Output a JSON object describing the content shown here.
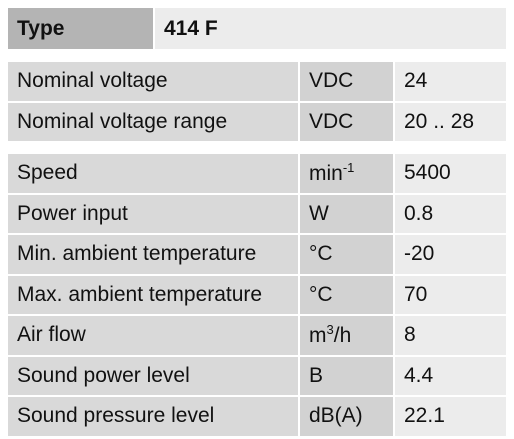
{
  "header": {
    "label": "Type",
    "value": "414 F"
  },
  "groups": [
    [
      {
        "label": "Nominal voltage",
        "unit": [
          "VDC"
        ],
        "value": 24
      },
      {
        "label": "Nominal voltage range",
        "unit": [
          "VDC"
        ],
        "value": "20 .. 28"
      }
    ],
    [
      {
        "label": "Speed",
        "unit": [
          "min",
          {
            "sup": "-1"
          }
        ],
        "value": 5400
      },
      {
        "label": "Power input",
        "unit": [
          "W"
        ],
        "value": 0.8
      },
      {
        "label": "Min. ambient temperature",
        "unit": [
          "°C"
        ],
        "value": -20
      },
      {
        "label": "Max. ambient temperature",
        "unit": [
          "°C"
        ],
        "value": 70
      },
      {
        "label": "Air flow",
        "unit": [
          "m",
          {
            "sup": "3"
          },
          "/h"
        ],
        "value": 8
      },
      {
        "label": "Sound power level",
        "unit": [
          "B"
        ],
        "value": 4.4
      },
      {
        "label": "Sound pressure level",
        "unit": [
          "dB(A)"
        ],
        "value": 22.1
      }
    ]
  ]
}
